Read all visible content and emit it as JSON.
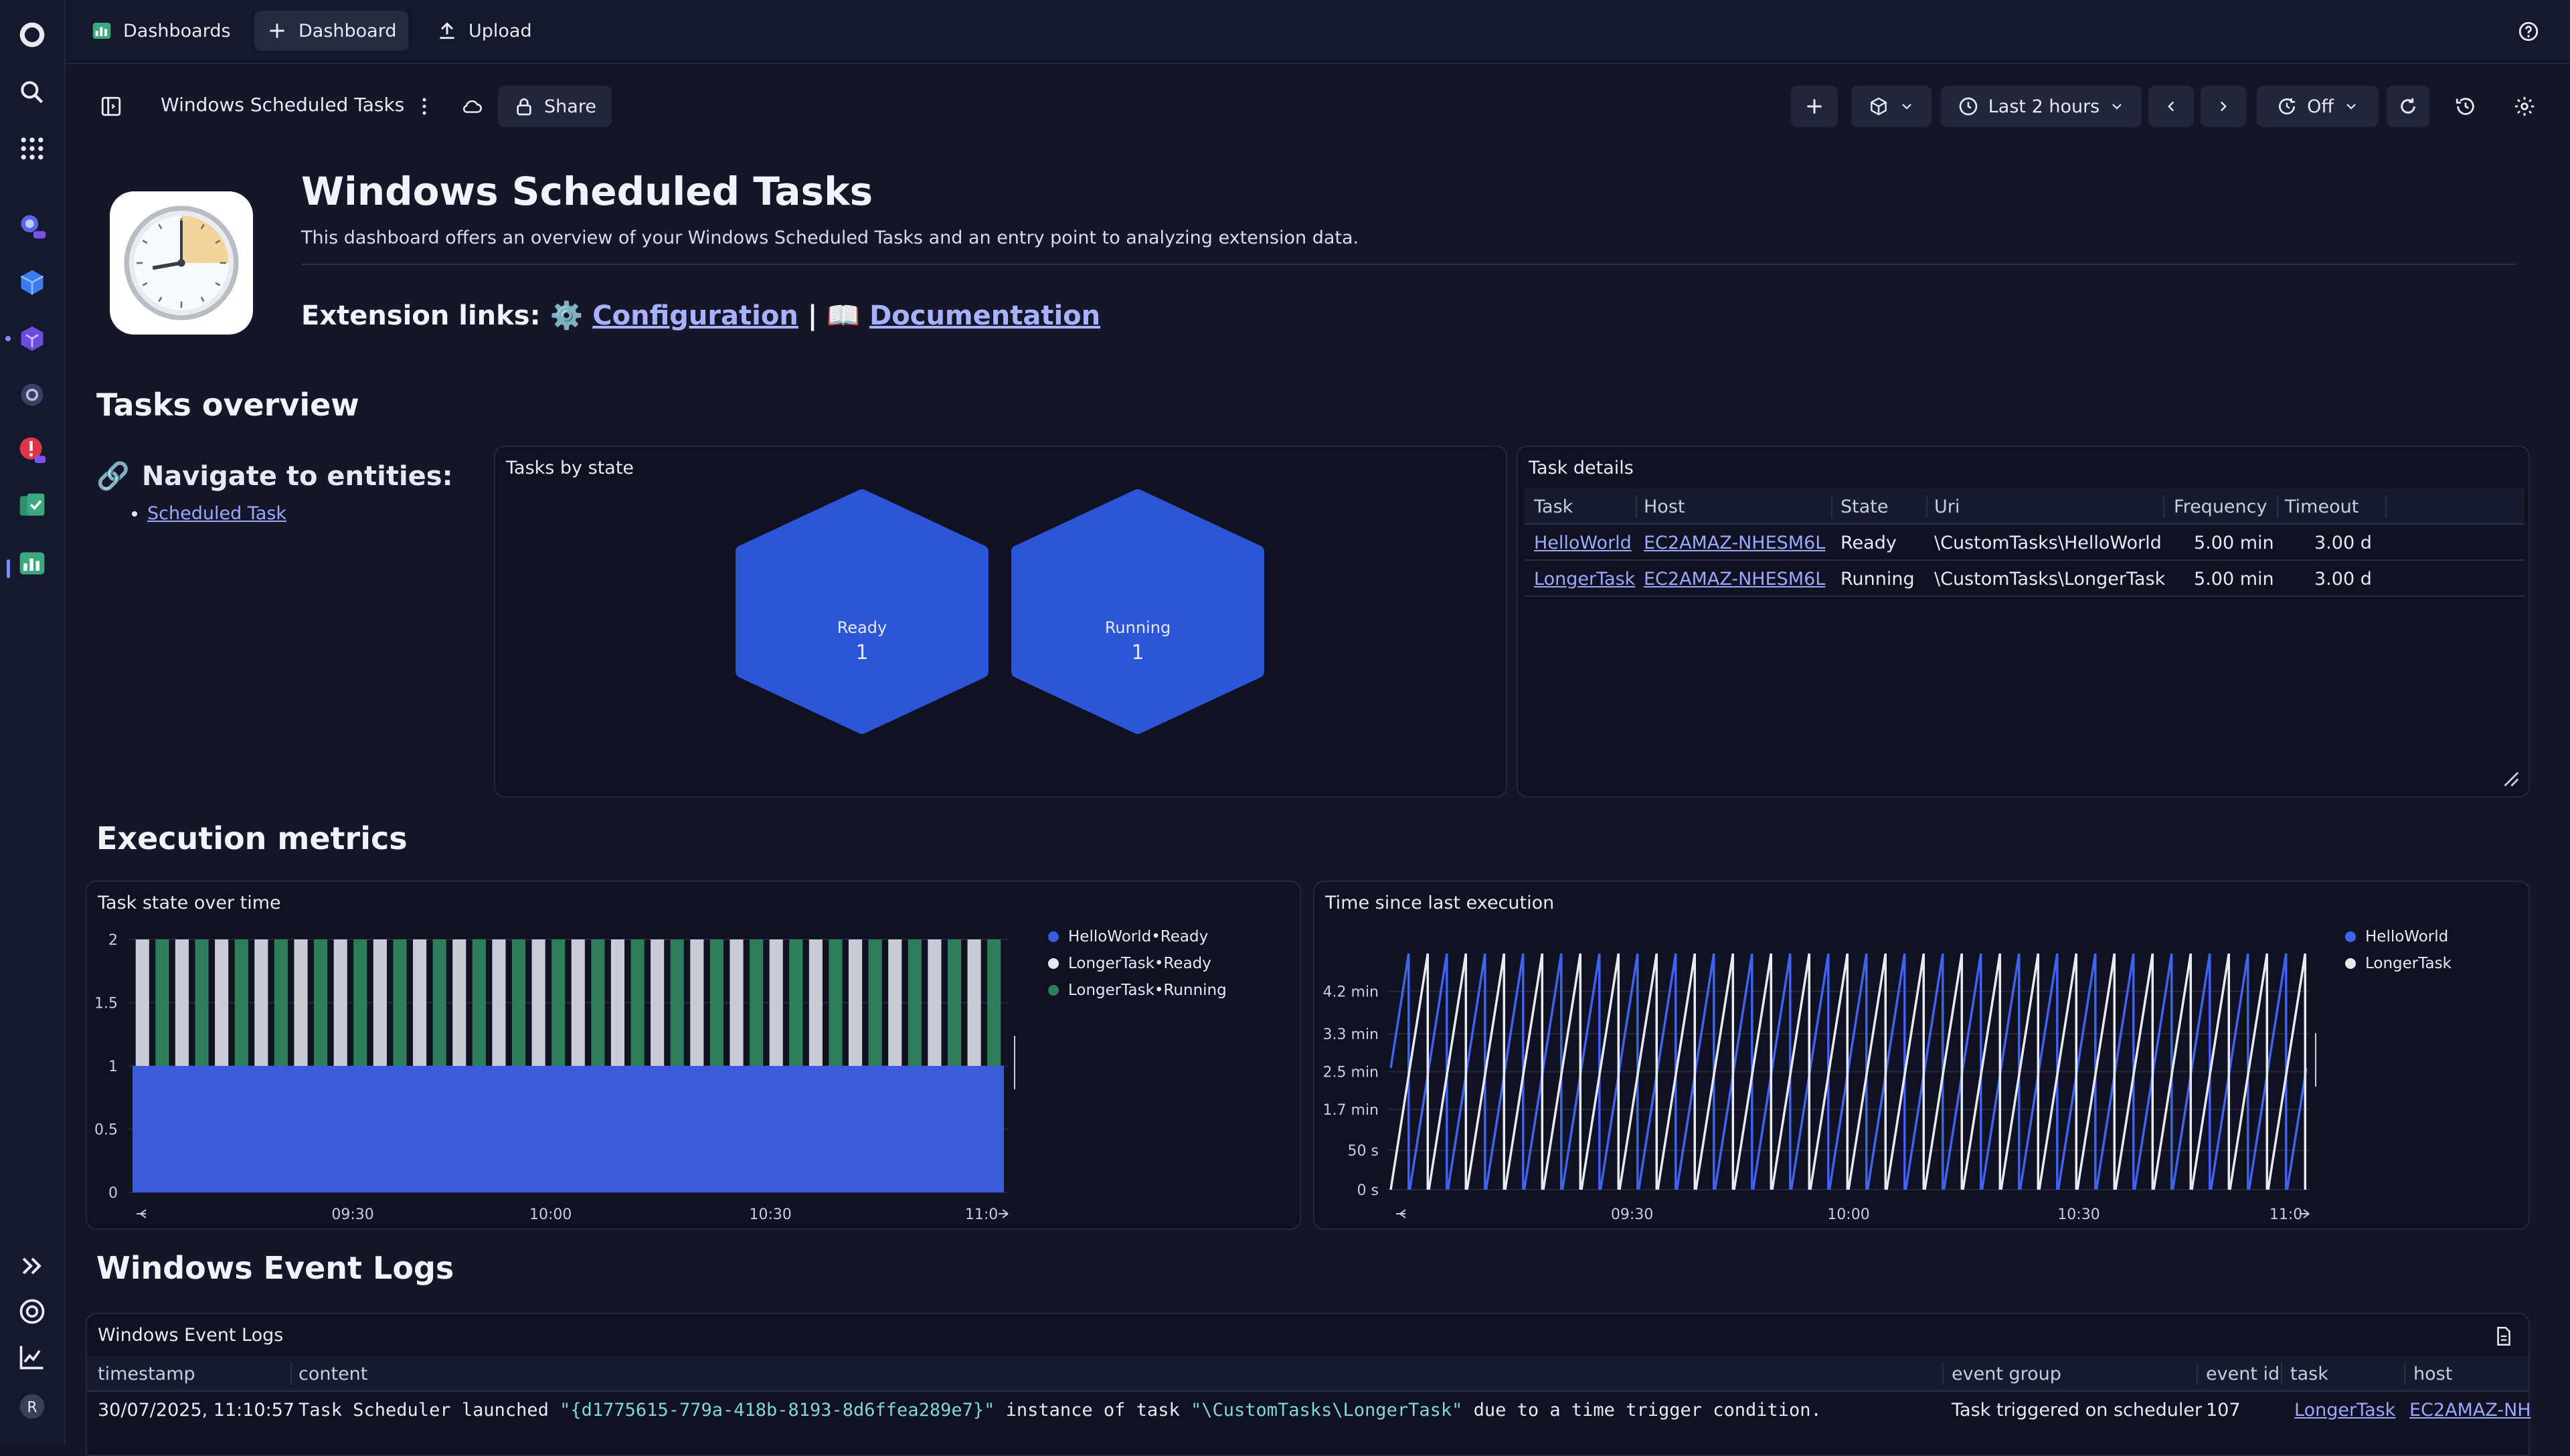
{
  "topbar": {
    "dashboards_label": "Dashboards",
    "new_dashboard_label": "Dashboard",
    "upload_label": "Upload"
  },
  "toolbar": {
    "dashboard_name": "Windows Scheduled Tasks",
    "share_label": "Share",
    "timeframe": "Last 2 hours",
    "refresh_label": "Off"
  },
  "header": {
    "title": "Windows Scheduled Tasks",
    "description": "This dashboard offers an overview of your Windows Scheduled Tasks and an entry point to analyzing extension data.",
    "ext_links_label": "Extension links:",
    "config_icon": "⚙️",
    "config_label": "Configuration",
    "separator": "|",
    "doc_icon": "📖",
    "doc_label": "Documentation"
  },
  "sections": {
    "overview": "Tasks overview",
    "metrics": "Execution metrics",
    "logs": "Windows Event Logs"
  },
  "navigate": {
    "icon": "🔗",
    "title": "Navigate to entities:",
    "items": [
      "Scheduled Task"
    ]
  },
  "tasks_by_state": {
    "title": "Tasks by state",
    "items": [
      {
        "label": "Ready",
        "value": "1"
      },
      {
        "label": "Running",
        "value": "1"
      }
    ]
  },
  "task_details": {
    "title": "Task details",
    "columns": [
      "Task",
      "Host",
      "State",
      "Uri",
      "Frequency",
      "Timeout"
    ],
    "rows": [
      {
        "task": "HelloWorld",
        "host": "EC2AMAZ-NHESM6L",
        "state": "Ready",
        "uri": "\\CustomTasks\\HelloWorld",
        "frequency": "5.00 min",
        "timeout": "3.00 d"
      },
      {
        "task": "LongerTask",
        "host": "EC2AMAZ-NHESM6L",
        "state": "Running",
        "uri": "\\CustomTasks\\LongerTask",
        "frequency": "5.00 min",
        "timeout": "3.00 d"
      }
    ]
  },
  "chart_data": [
    {
      "type": "bar",
      "title": "Task state over time",
      "stacked": true,
      "y_ticks": [
        "2",
        "1.5",
        "1",
        "0.5",
        "0"
      ],
      "x_ticks": [
        "09:30",
        "10:00",
        "10:30",
        "11:0"
      ],
      "ylim": [
        0,
        2
      ],
      "bar_count": 44,
      "series": [
        {
          "name": "HelloWorld•Ready",
          "color": "#3b5bdb",
          "value": 1
        },
        {
          "name": "LongerTask•Ready",
          "color": "#c9ccd6",
          "pattern": "alternating"
        },
        {
          "name": "LongerTask•Running",
          "color": "#2e7d5b",
          "pattern": "alternating"
        }
      ],
      "legend": "right"
    },
    {
      "type": "line",
      "title": "Time since last execution",
      "y_ticks": [
        "4.2 min",
        "3.3 min",
        "2.5 min",
        "1.7 min",
        "50 s",
        "0 s"
      ],
      "x_ticks": [
        "09:30",
        "10:00",
        "10:30",
        "11:0"
      ],
      "ylim_seconds": [
        0,
        300
      ],
      "period_minutes": 5,
      "series": [
        {
          "name": "HelloWorld",
          "color": "#3d63f0",
          "peak_seconds": 300,
          "phase": 0.5
        },
        {
          "name": "LongerTask",
          "color": "#e8eaf0",
          "peak_seconds": 300,
          "phase": 0
        }
      ],
      "legend": "right"
    }
  ],
  "event_logs": {
    "title": "Windows Event Logs",
    "columns": [
      "timestamp",
      "content",
      "event group",
      "event id",
      "task",
      "host"
    ],
    "rows": [
      {
        "timestamp": "30/07/2025, 11:10:57",
        "content_pre": "Task Scheduler launched ",
        "content_guid": "\"{d1775615-779a-418b-8193-8d6ffea289e7}\"",
        "content_mid": " instance of task ",
        "content_task": "\"\\CustomTasks\\LongerTask\"",
        "content_post": " due to a time trigger condition.",
        "event_group": "Task triggered on scheduler",
        "event_id": "107",
        "task": "LongerTask",
        "host": "EC2AMAZ-NH"
      }
    ]
  }
}
